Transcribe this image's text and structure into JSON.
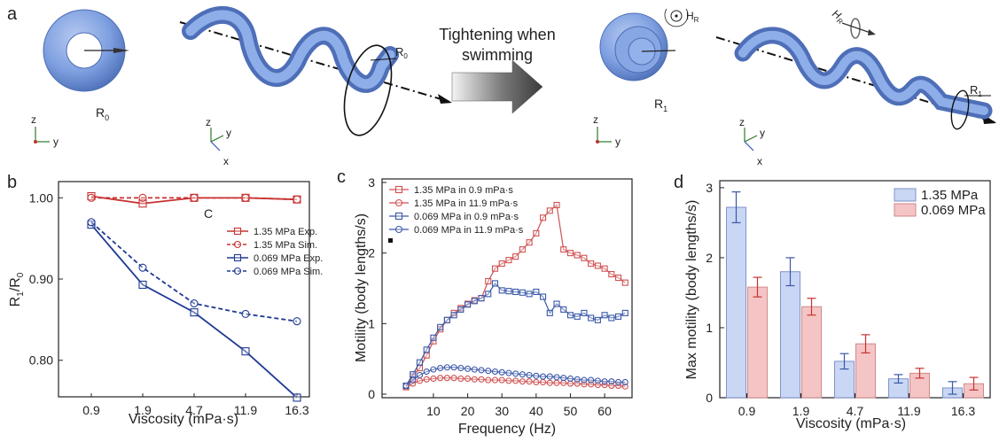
{
  "panel_a": {
    "letter": "a",
    "arrow_text_line1": "Tightening when",
    "arrow_text_line2": "swimming",
    "torus_left_label": "R",
    "torus_left_sub": "0",
    "helix_left_label": "R",
    "helix_left_sub": "0",
    "torus_right_label": "R",
    "torus_right_sub": "1",
    "helix_right_label": "R",
    "helix_right_sub": "1",
    "field_label_1": "H",
    "field_label_1_sub": "R",
    "field_label_2": "H",
    "field_label_2_sub": "R",
    "axes": {
      "z": "z",
      "y": "y",
      "x": "x"
    },
    "colors": {
      "tube": "#7d9fe0",
      "ring": "#6f8fd4"
    }
  },
  "chart_data": [
    {
      "panel": "b",
      "type": "line",
      "x_categories": [
        "0.9",
        "1.9",
        "4.7",
        "11.9",
        "16.3"
      ],
      "xlabel": "Viscosity (mPa·s)",
      "ylabel": "R",
      "ylabel_sub1": "1",
      "ylabel_mid": "/R",
      "ylabel_sub2": "0",
      "yticks": [
        "0.80",
        "0.90",
        "1.00"
      ],
      "ytick_values": [
        0.8,
        0.9,
        1.0
      ],
      "ylim": [
        0.755,
        1.02
      ],
      "annotation": "C",
      "series": [
        {
          "name": "1.35 MPa Exp.",
          "color": "#c83232",
          "marker": "square",
          "dash": false,
          "values": [
            1.002,
            0.993,
            1.0,
            1.0,
            0.998
          ]
        },
        {
          "name": "1.35 MPa Sim.",
          "color": "#c83232",
          "marker": "circle",
          "dash": true,
          "values": [
            1.0,
            1.0,
            1.0,
            1.0,
            0.998
          ]
        },
        {
          "name": "0.069 MPa Exp.",
          "color": "#1f3a93",
          "marker": "square",
          "dash": false,
          "values": [
            0.967,
            0.893,
            0.859,
            0.811,
            0.754
          ]
        },
        {
          "name": "0.069 MPa Sim.",
          "color": "#1f3a93",
          "marker": "circle",
          "dash": true,
          "values": [
            0.97,
            0.914,
            0.87,
            0.857,
            0.848
          ]
        }
      ]
    },
    {
      "panel": "c",
      "type": "line",
      "xlabel": "Frequency (Hz)",
      "ylabel": "Motility (body lengths/s)",
      "xticks": [
        "10",
        "20",
        "30",
        "40",
        "50",
        "60"
      ],
      "xtick_values": [
        10,
        20,
        30,
        40,
        50,
        60
      ],
      "yticks": [
        "0",
        "1",
        "2",
        "3"
      ],
      "ytick_values": [
        0,
        1,
        2,
        3
      ],
      "xlim": [
        -5,
        68
      ],
      "ylim": [
        -0.05,
        3.05
      ],
      "series": [
        {
          "name": "1.35 MPa in 0.9 mPa·s",
          "color": "#d05050",
          "marker": "square",
          "x": [
            2,
            4,
            6,
            8,
            10,
            12,
            14,
            16,
            18,
            20,
            22,
            24,
            26,
            28,
            30,
            32,
            34,
            36,
            38,
            40,
            42,
            44,
            46,
            48,
            50,
            52,
            54,
            56,
            58,
            60,
            62,
            64,
            66
          ],
          "y": [
            0.1,
            0.25,
            0.37,
            0.55,
            0.75,
            0.92,
            1.05,
            1.15,
            1.22,
            1.28,
            1.33,
            1.36,
            1.6,
            1.78,
            1.85,
            1.9,
            1.95,
            2.05,
            2.15,
            2.28,
            2.5,
            2.6,
            2.68,
            2.05,
            2.0,
            1.97,
            1.93,
            1.85,
            1.82,
            1.78,
            1.7,
            1.65,
            1.58
          ]
        },
        {
          "name": "1.35 MPa in 11.9 mPa·s",
          "color": "#d05050",
          "marker": "circle",
          "x": [
            2,
            4,
            6,
            8,
            10,
            12,
            14,
            16,
            18,
            20,
            22,
            24,
            26,
            28,
            30,
            32,
            34,
            36,
            38,
            40,
            42,
            44,
            46,
            48,
            50,
            52,
            54,
            56,
            58,
            60,
            62,
            64,
            66
          ],
          "y": [
            0.1,
            0.15,
            0.19,
            0.21,
            0.22,
            0.23,
            0.23,
            0.23,
            0.22,
            0.22,
            0.21,
            0.21,
            0.2,
            0.2,
            0.2,
            0.19,
            0.19,
            0.18,
            0.18,
            0.17,
            0.17,
            0.16,
            0.16,
            0.16,
            0.15,
            0.15,
            0.14,
            0.14,
            0.13,
            0.13,
            0.12,
            0.12,
            0.11
          ]
        },
        {
          "name": "0.069 MPa in 0.9 mPa·s",
          "color": "#3a58a8",
          "marker": "square",
          "x": [
            2,
            4,
            6,
            8,
            10,
            12,
            14,
            16,
            18,
            20,
            22,
            24,
            26,
            28,
            30,
            32,
            34,
            36,
            38,
            40,
            42,
            44,
            46,
            48,
            50,
            52,
            54,
            56,
            58,
            60,
            62,
            64,
            66
          ],
          "y": [
            0.12,
            0.28,
            0.45,
            0.63,
            0.8,
            0.95,
            1.05,
            1.12,
            1.2,
            1.27,
            1.32,
            1.36,
            1.42,
            1.57,
            1.47,
            1.46,
            1.45,
            1.44,
            1.42,
            1.45,
            1.38,
            1.15,
            1.28,
            1.2,
            1.12,
            1.1,
            1.15,
            1.08,
            1.05,
            1.12,
            1.08,
            1.1,
            1.15
          ]
        },
        {
          "name": "0.069 MPa in 11.9 mPa·s",
          "color": "#3a58a8",
          "marker": "circle",
          "x": [
            2,
            4,
            6,
            8,
            10,
            12,
            14,
            16,
            18,
            20,
            22,
            24,
            26,
            28,
            30,
            32,
            34,
            36,
            38,
            40,
            42,
            44,
            46,
            48,
            50,
            52,
            54,
            56,
            58,
            60,
            62,
            64,
            66
          ],
          "y": [
            0.12,
            0.2,
            0.27,
            0.32,
            0.35,
            0.37,
            0.38,
            0.38,
            0.37,
            0.36,
            0.35,
            0.34,
            0.33,
            0.32,
            0.31,
            0.3,
            0.29,
            0.28,
            0.27,
            0.26,
            0.25,
            0.25,
            0.24,
            0.23,
            0.22,
            0.21,
            0.2,
            0.2,
            0.19,
            0.18,
            0.18,
            0.17,
            0.17
          ]
        }
      ]
    },
    {
      "panel": "d",
      "type": "bar",
      "categories": [
        "0.9",
        "1.9",
        "4.7",
        "11.9",
        "16.3"
      ],
      "xlabel": "Viscosity (mPa·s)",
      "ylabel": "Max motility (body lengths/s)",
      "yticks": [
        "0",
        "1",
        "2",
        "3"
      ],
      "ytick_values": [
        0,
        1,
        2,
        3
      ],
      "ylim": [
        0,
        3.1
      ],
      "series": [
        {
          "name": "1.35 MPa",
          "fill": "#c9d7f5",
          "stroke": "#7e93c9",
          "err_color": "#3a58a8",
          "values": [
            2.72,
            1.8,
            0.52,
            0.27,
            0.14
          ],
          "errors": [
            0.22,
            0.2,
            0.11,
            0.06,
            0.09
          ]
        },
        {
          "name": "0.069 MPa",
          "fill": "#f5c4c4",
          "stroke": "#d08a8a",
          "err_color": "#c83232",
          "values": [
            1.58,
            1.3,
            0.77,
            0.35,
            0.2
          ],
          "errors": [
            0.14,
            0.12,
            0.13,
            0.07,
            0.09
          ]
        }
      ]
    }
  ],
  "panel_letters": {
    "b": "b",
    "c": "c",
    "d": "d"
  }
}
